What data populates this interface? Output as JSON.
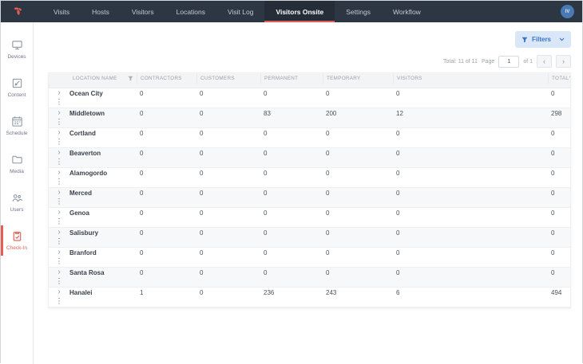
{
  "nav": {
    "active_index": 5,
    "items": [
      {
        "label": "Visits"
      },
      {
        "label": "Hosts"
      },
      {
        "label": "Visitors"
      },
      {
        "label": "Locations"
      },
      {
        "label": "Visit Log"
      },
      {
        "label": "Visitors Onsite"
      },
      {
        "label": "Settings"
      },
      {
        "label": "Workflow"
      }
    ],
    "avatar_initials": "IV",
    "logo_icon": "brand-logo-icon"
  },
  "sidebar": {
    "active_index": 5,
    "items": [
      {
        "label": "Devices",
        "icon": "devices-icon"
      },
      {
        "label": "Content",
        "icon": "content-icon"
      },
      {
        "label": "Schedule",
        "icon": "schedule-icon"
      },
      {
        "label": "Media",
        "icon": "media-icon"
      },
      {
        "label": "Users",
        "icon": "users-icon"
      },
      {
        "label": "Check-In",
        "icon": "check-in-icon"
      }
    ]
  },
  "toolbar": {
    "filters_label": "Filters",
    "filters_icon": "filter-icon",
    "chevron_icon": "chevron-down-icon"
  },
  "pagination": {
    "total_text": "Total: 11 of 11",
    "page_label": "Page",
    "page_value": "1",
    "of_text": "of 1",
    "prev_icon": "chevron-left-icon",
    "next_icon": "chevron-right-icon",
    "prev_glyph": "‹",
    "next_glyph": "›"
  },
  "table": {
    "columns": [
      {
        "label": "LOCATION NAME",
        "filter": true
      },
      {
        "label": "CONTRACTORS",
        "filter": false
      },
      {
        "label": "CUSTOMERS",
        "filter": false
      },
      {
        "label": "PERMANENT",
        "filter": false
      },
      {
        "label": "TEMPORARY",
        "filter": false
      },
      {
        "label": "VISITORS",
        "filter": false
      },
      {
        "label": "TOTAL",
        "filter": true
      }
    ],
    "row_icons": {
      "expander": "chevron-right-icon",
      "menu": "kebab-menu-icon"
    },
    "expander_glyph": "›",
    "menu_glyph": "⋮",
    "rows": [
      {
        "name": "Ocean City",
        "values": [
          0,
          0,
          0,
          0,
          0,
          0
        ]
      },
      {
        "name": "Middletown",
        "values": [
          0,
          0,
          83,
          200,
          12,
          298
        ]
      },
      {
        "name": "Cortland",
        "values": [
          0,
          0,
          0,
          0,
          0,
          0
        ]
      },
      {
        "name": "Beaverton",
        "values": [
          0,
          0,
          0,
          0,
          0,
          0
        ]
      },
      {
        "name": "Alamogordo",
        "values": [
          0,
          0,
          0,
          0,
          0,
          0
        ]
      },
      {
        "name": "Merced",
        "values": [
          0,
          0,
          0,
          0,
          0,
          0
        ]
      },
      {
        "name": "Genoa",
        "values": [
          0,
          0,
          0,
          0,
          0,
          0
        ]
      },
      {
        "name": "Salisbury",
        "values": [
          0,
          0,
          0,
          0,
          0,
          0
        ]
      },
      {
        "name": "Branford",
        "values": [
          0,
          0,
          0,
          0,
          0,
          0
        ]
      },
      {
        "name": "Santa Rosa",
        "values": [
          0,
          0,
          0,
          0,
          0,
          0
        ]
      },
      {
        "name": "Hanalei",
        "values": [
          1,
          0,
          236,
          243,
          6,
          494
        ]
      }
    ]
  },
  "colors": {
    "nav_bg": "#2d3643",
    "nav_active_bg": "#242d38",
    "accent_red": "#e25d52",
    "filters_bg": "#d9e7f8",
    "filters_text": "#3b74c7",
    "avatar_bg": "#4a7ab5",
    "table_header_bg": "#f3f4f6",
    "row_alt_bg": "#f7f8fa"
  }
}
